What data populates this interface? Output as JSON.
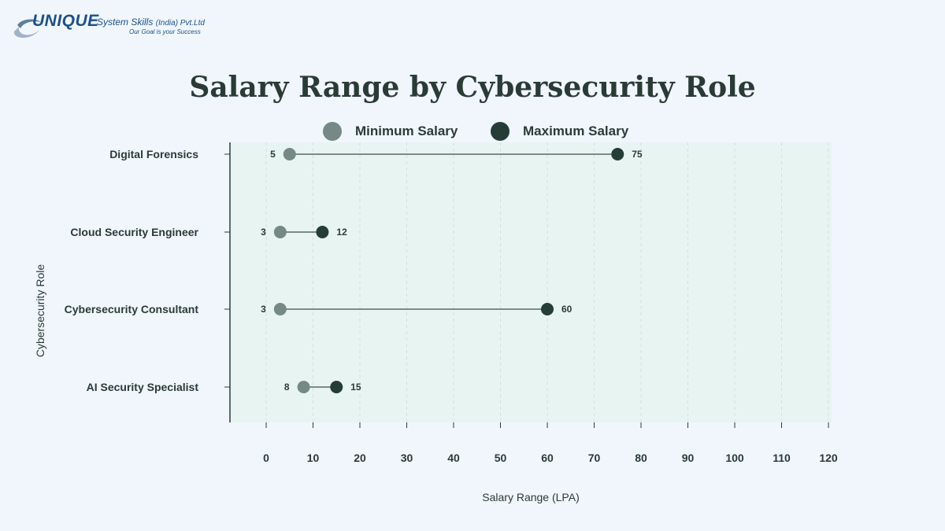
{
  "logo": {
    "brand": "UNIQUE",
    "company_main": "System Skills",
    "company_small": "(India) Pvt.Ltd",
    "tagline": "Our Goal is your Success"
  },
  "colors": {
    "background": "#f0f6fc",
    "plot_area": "#e8f4f2",
    "min_marker": "#768985",
    "max_marker": "#243d37",
    "axis": "#2a3b36",
    "brand": "#1c4f8a"
  },
  "chart_data": {
    "type": "dumbbell",
    "title": "Salary Range by Cybersecurity Role",
    "xlabel": "Salary Range (LPA)",
    "ylabel": "Cybersecurity Role",
    "xlim": [
      -8,
      121
    ],
    "xticks": [
      0,
      10,
      20,
      30,
      40,
      50,
      60,
      70,
      80,
      90,
      100,
      110,
      120
    ],
    "grid": true,
    "legend_position": "top-center",
    "categories": [
      "Digital Forensics",
      "Cloud Security Engineer",
      "Cybersecurity Consultant",
      "AI Security Specialist"
    ],
    "series": [
      {
        "name": "Minimum Salary",
        "color": "#768985",
        "values": [
          5,
          3,
          3,
          8
        ]
      },
      {
        "name": "Maximum Salary",
        "color": "#243d37",
        "values": [
          75,
          12,
          60,
          15
        ]
      }
    ]
  }
}
